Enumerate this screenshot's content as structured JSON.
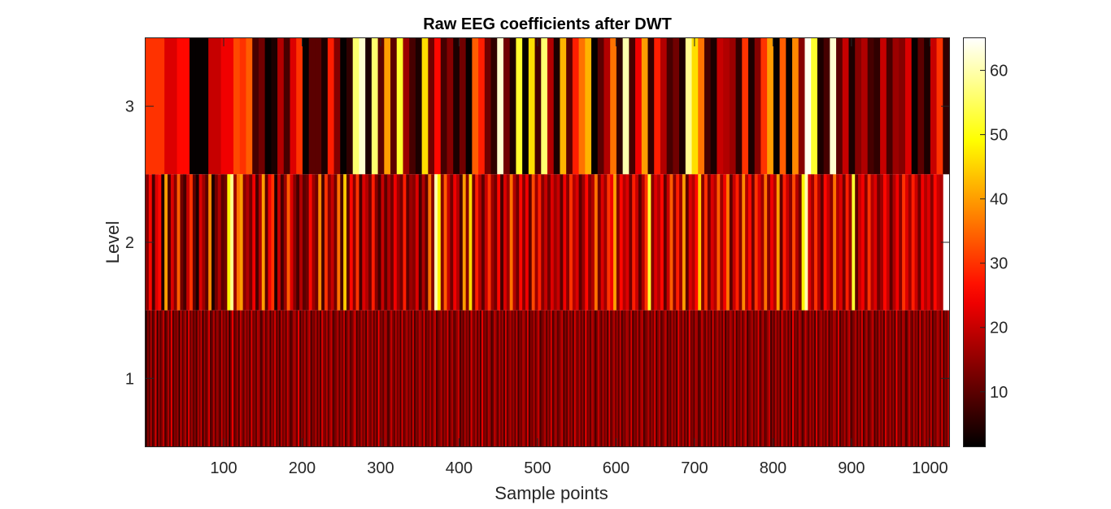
{
  "chart_data": {
    "type": "heatmap",
    "title": "Raw EEG coefficients after DWT",
    "xlabel": "Sample points",
    "ylabel": "Level",
    "xlim": [
      0.5,
      1024.5
    ],
    "ylim": [
      0.5,
      3.5
    ],
    "x_ticks": [
      100,
      200,
      300,
      400,
      500,
      600,
      700,
      800,
      900,
      1000
    ],
    "y_ticks": [
      1,
      2,
      3
    ],
    "colormap": "hot",
    "colorbar": {
      "range": [
        1.5,
        65
      ],
      "ticks": [
        10,
        20,
        30,
        40,
        50,
        60
      ]
    },
    "rows": [
      {
        "level": 3,
        "x_start": 1,
        "step": 8,
        "values": [
          30,
          30,
          30,
          22,
          22,
          26,
          26,
          2,
          2,
          2,
          20,
          20,
          24,
          24,
          32,
          30,
          34,
          8,
          12,
          2,
          4,
          18,
          8,
          22,
          30,
          2,
          10,
          10,
          4,
          28,
          14,
          2,
          6,
          56,
          62,
          4,
          56,
          10,
          40,
          10,
          52,
          16,
          8,
          4,
          46,
          12,
          26,
          8,
          14,
          4,
          12,
          2,
          34,
          28,
          12,
          6,
          62,
          12,
          4,
          52,
          2,
          46,
          8,
          56,
          18,
          4,
          42,
          10,
          28,
          36,
          42,
          2,
          10,
          18,
          36,
          6,
          60,
          8,
          24,
          40,
          6,
          28,
          18,
          8,
          12,
          4,
          58,
          46,
          36,
          8,
          4,
          20,
          18,
          16,
          6,
          30,
          4,
          14,
          30,
          40,
          2,
          34,
          2,
          38,
          14,
          64,
          52,
          4,
          8,
          62,
          10,
          20,
          4,
          14,
          18,
          8,
          6,
          20,
          8,
          16,
          14,
          22,
          2,
          10,
          4,
          20,
          30,
          6
        ]
      },
      {
        "level": 2,
        "x_start": 1,
        "step": 4,
        "values": [
          14,
          26,
          8,
          22,
          26,
          4,
          40,
          8,
          22,
          14,
          34,
          12,
          8,
          20,
          30,
          10,
          4,
          22,
          16,
          10,
          38,
          4,
          12,
          18,
          10,
          12,
          48,
          58,
          16,
          36,
          40,
          14,
          18,
          12,
          24,
          8,
          18,
          40,
          10,
          24,
          30,
          4,
          20,
          8,
          16,
          34,
          22,
          14,
          8,
          18,
          10,
          12,
          26,
          16,
          12,
          38,
          8,
          30,
          14,
          20,
          12,
          36,
          8,
          44,
          10,
          26,
          14,
          30,
          8,
          22,
          18,
          12,
          28,
          14,
          8,
          20,
          10,
          18,
          12,
          24,
          16,
          12,
          28,
          10,
          16,
          14,
          22,
          8,
          18,
          10,
          36,
          14,
          60,
          48,
          14,
          34,
          20,
          12,
          24,
          18,
          8,
          40,
          14,
          46,
          12,
          28,
          18,
          10,
          20,
          30,
          16,
          12,
          26,
          8,
          22,
          16,
          36,
          18,
          12,
          26,
          14,
          24,
          10,
          32,
          16,
          28,
          14,
          20,
          12,
          22,
          16,
          20,
          10,
          24,
          14,
          30,
          18,
          22,
          10,
          16,
          26,
          14,
          18,
          36,
          12,
          22,
          16,
          30,
          24,
          40,
          14,
          26,
          18,
          22,
          12,
          28,
          20,
          10,
          18,
          30,
          52,
          14,
          22,
          18,
          26,
          10,
          20,
          34,
          14,
          28,
          16,
          40,
          10,
          22,
          18,
          26,
          44,
          14,
          30,
          12,
          22,
          18,
          34,
          16,
          24,
          36,
          10,
          20,
          28,
          14,
          38,
          18,
          26,
          12,
          30,
          22,
          16,
          36,
          14,
          24,
          18,
          40,
          10,
          28,
          20,
          14,
          32,
          18,
          12,
          48,
          60,
          22,
          16,
          30,
          18,
          10,
          26,
          20,
          14,
          36,
          18,
          22,
          12,
          28,
          16,
          52,
          10,
          20,
          24,
          14,
          30,
          18,
          22,
          12,
          16,
          26,
          20,
          10,
          18,
          24,
          14,
          30,
          22,
          16,
          28,
          20,
          12,
          24,
          18,
          22,
          14,
          26,
          20,
          18
        ]
      },
      {
        "level": 1,
        "x_start": 1,
        "step": 2,
        "values": [
          6,
          14,
          10,
          18,
          8,
          12,
          22,
          6,
          16,
          10,
          14,
          20,
          8,
          12,
          18,
          10,
          24,
          8,
          14,
          12,
          16,
          6,
          20,
          10,
          14,
          18,
          8,
          22,
          12,
          16,
          10,
          14,
          8,
          18,
          12,
          20,
          6,
          16,
          10,
          14,
          22,
          8,
          12,
          18,
          10,
          16,
          14,
          8,
          20,
          12,
          16,
          10,
          18,
          6,
          14,
          24,
          10,
          12,
          16,
          8,
          20,
          14,
          10,
          18,
          12,
          16,
          8,
          22,
          12,
          14,
          10,
          18,
          16,
          8,
          12,
          20,
          10,
          14,
          18,
          8,
          16,
          12,
          22,
          10,
          14,
          8,
          18,
          12,
          16,
          10,
          20,
          14,
          8,
          12,
          18,
          16,
          10,
          24,
          8,
          14,
          12,
          18,
          10,
          16,
          20,
          8,
          14,
          12,
          18,
          10,
          16,
          8,
          22,
          14,
          12,
          18,
          10,
          16,
          20,
          8,
          12,
          14,
          18,
          10,
          16,
          12,
          20,
          8,
          14,
          18,
          10,
          12,
          16,
          22,
          8,
          14,
          10,
          18,
          12,
          16,
          8,
          20,
          14,
          12,
          18,
          10,
          16,
          8,
          24,
          12,
          14,
          10,
          18,
          16,
          8,
          12,
          20,
          14,
          10,
          18,
          12,
          16,
          8,
          22,
          10,
          14,
          18,
          12,
          16,
          10,
          20,
          8,
          14,
          12,
          18,
          16,
          10,
          22,
          8,
          14,
          12,
          18,
          10,
          16,
          20,
          8,
          12,
          14,
          18,
          10,
          16,
          12,
          22,
          8,
          14,
          18,
          10,
          12,
          16,
          20,
          8,
          14,
          10,
          18,
          12,
          16,
          8,
          22,
          14,
          12,
          18,
          10,
          16,
          8,
          24,
          12,
          14,
          10,
          18,
          16,
          8,
          12,
          20,
          14,
          10,
          18,
          12,
          16,
          8,
          22,
          10,
          14,
          18,
          12,
          16,
          10,
          20,
          8,
          14,
          12,
          18,
          16,
          10,
          22,
          8,
          14,
          12,
          18,
          10,
          16,
          20,
          8,
          12,
          14,
          18,
          10,
          16,
          12,
          22,
          8,
          14,
          18,
          10,
          12,
          16,
          20,
          8,
          14,
          10,
          18,
          12,
          16,
          8,
          22,
          14,
          12,
          18,
          10,
          16,
          8,
          24,
          12,
          14,
          10,
          18,
          16,
          8,
          12,
          20,
          14,
          10,
          18,
          12,
          16,
          8,
          22,
          10,
          14,
          18,
          12,
          16,
          10,
          20,
          8,
          14,
          12,
          18,
          16,
          10,
          22,
          8,
          14,
          12,
          18,
          10,
          16,
          20,
          8,
          12,
          14,
          18,
          10,
          16,
          12,
          22,
          8,
          14,
          18,
          10,
          12,
          16,
          20,
          8,
          14,
          10,
          18,
          12,
          16,
          8,
          22,
          14,
          12,
          18,
          10,
          16,
          8,
          24,
          12,
          14,
          10,
          18,
          16,
          8,
          12,
          20,
          14,
          10,
          18,
          12,
          16,
          8,
          22,
          10,
          14,
          18,
          12,
          16,
          10,
          20,
          8,
          14,
          12,
          18,
          16,
          10,
          22,
          8,
          14,
          12,
          18,
          10,
          16,
          20,
          8,
          12,
          14,
          18,
          10,
          16,
          12,
          22,
          8,
          14,
          18,
          10,
          12,
          16,
          20,
          8,
          14,
          10,
          18,
          12,
          16,
          8,
          22,
          14,
          12,
          18,
          10,
          16,
          8,
          24,
          12,
          14,
          10,
          18,
          16,
          8,
          12,
          20,
          14,
          10,
          18,
          12,
          16,
          8,
          22,
          10,
          14,
          18,
          12,
          16,
          10,
          20,
          8,
          14,
          12,
          18,
          16,
          10,
          22,
          8,
          14,
          12,
          18,
          10,
          16,
          20,
          8,
          12,
          14,
          18,
          10,
          16,
          12,
          22,
          8,
          14,
          18,
          10,
          12,
          16,
          20,
          8,
          14,
          10,
          18,
          12,
          16,
          8,
          22,
          14,
          12,
          18,
          10,
          16,
          8,
          24,
          12,
          14,
          10,
          18,
          16,
          8,
          12,
          20,
          14,
          10,
          18,
          12,
          16,
          8,
          22,
          10,
          14,
          18,
          12,
          16,
          10,
          20,
          8,
          14,
          12,
          18,
          16,
          10,
          22,
          8,
          14,
          12,
          18,
          10,
          16,
          20,
          8,
          12,
          14,
          18,
          10,
          16,
          12,
          22,
          8,
          14,
          18,
          10,
          12,
          16,
          20,
          8,
          14,
          10,
          18,
          12,
          16,
          8,
          22,
          14,
          12,
          18,
          10,
          16,
          8,
          24,
          12,
          14,
          10,
          18,
          16,
          8
        ]
      }
    ]
  }
}
